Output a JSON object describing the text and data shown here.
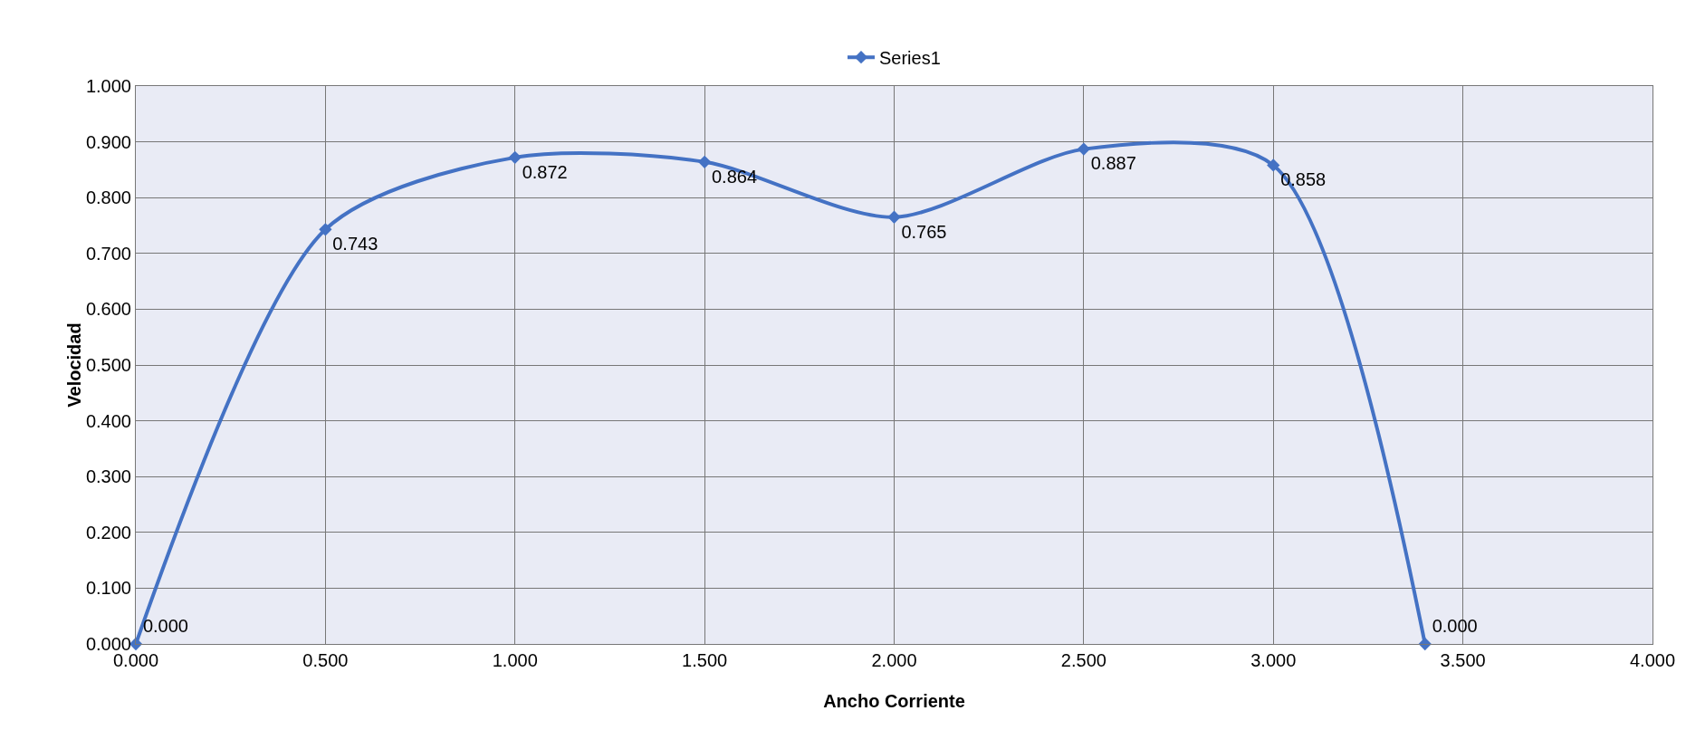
{
  "chart_data": {
    "type": "line",
    "xlabel": "Ancho Corriente",
    "ylabel": "Velocidad",
    "x": [
      0,
      0.5,
      1,
      1.5,
      2,
      2.5,
      3,
      3.4
    ],
    "series": [
      {
        "name": "Series1",
        "color": "#4472c4",
        "values": [
          0,
          0.743,
          0.872,
          0.864,
          0.765,
          0.887,
          0.858,
          0
        ],
        "value_labels": [
          "0.000",
          "0.743",
          "0.872",
          "0.864",
          "0.765",
          "0.887",
          "0.858",
          "0.000"
        ]
      }
    ],
    "xlim": [
      0,
      4
    ],
    "xticks": [
      {
        "value": 0,
        "label": "0.000"
      },
      {
        "value": 0.5,
        "label": "0.500"
      },
      {
        "value": 1,
        "label": "1.000"
      },
      {
        "value": 1.5,
        "label": "1.500"
      },
      {
        "value": 2,
        "label": "2.000"
      },
      {
        "value": 2.5,
        "label": "2.500"
      },
      {
        "value": 3,
        "label": "3.000"
      },
      {
        "value": 3.5,
        "label": "3.500"
      },
      {
        "value": 4,
        "label": "4.000"
      }
    ],
    "ylim": [
      0,
      1
    ],
    "yticks": [
      {
        "value": 0,
        "label": "0.000"
      },
      {
        "value": 0.1,
        "label": "0.100"
      },
      {
        "value": 0.2,
        "label": "0.200"
      },
      {
        "value": 0.3,
        "label": "0.300"
      },
      {
        "value": 0.4,
        "label": "0.400"
      },
      {
        "value": 0.5,
        "label": "0.500"
      },
      {
        "value": 0.6,
        "label": "0.600"
      },
      {
        "value": 0.7,
        "label": "0.700"
      },
      {
        "value": 0.8,
        "label": "0.800"
      },
      {
        "value": 0.9,
        "label": "0.900"
      },
      {
        "value": 1,
        "label": "1.000"
      }
    ],
    "grid": true,
    "legend": "top",
    "marker": "diamond",
    "line_style": "solid"
  }
}
